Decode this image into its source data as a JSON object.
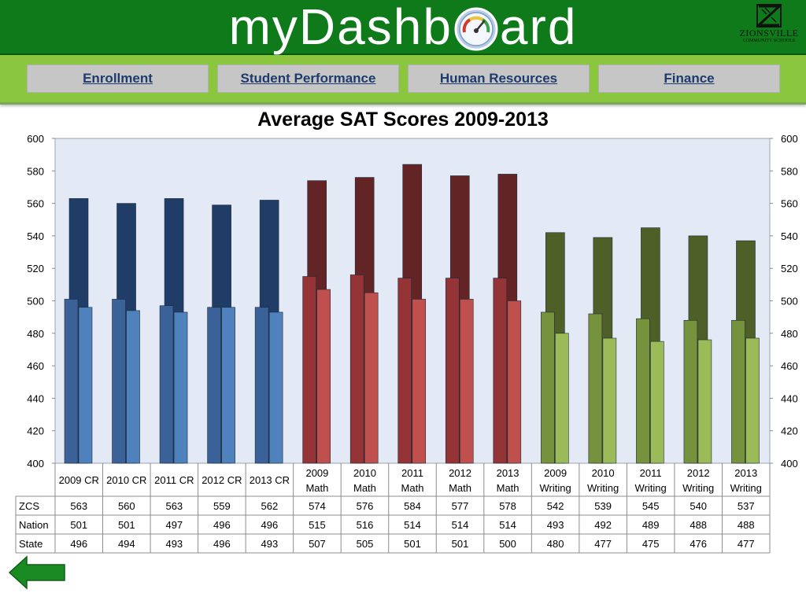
{
  "app": {
    "title_left": "myDashb",
    "title_right": "ard",
    "logo_name": "ZIONSVILLE",
    "logo_sub": "COMMUNITY SCHOOLS"
  },
  "nav": {
    "items": [
      {
        "label": "Enrollment"
      },
      {
        "label": "Student Performance"
      },
      {
        "label": "Human Resources"
      },
      {
        "label": "Finance"
      }
    ]
  },
  "colors": {
    "header_green": "#0e7a1a",
    "nav_green": "#8bc63f",
    "plot_bg": "#e3eaf5",
    "cr": {
      "zcs": "#1f3d66",
      "nation": "#3a6198",
      "state": "#4f81bd"
    },
    "math": {
      "zcs": "#632426",
      "nation": "#943436",
      "state": "#c0504d"
    },
    "writing": {
      "zcs": "#4e5f28",
      "nation": "#77923c",
      "state": "#9bbb59"
    }
  },
  "chart_data": {
    "type": "bar",
    "title": "Average SAT Scores 2009-2013",
    "ylim": [
      400,
      600
    ],
    "y_ticks": [
      400,
      420,
      440,
      460,
      480,
      500,
      520,
      540,
      560,
      580,
      600
    ],
    "y_axis_both_sides": true,
    "grid": false,
    "categories": [
      [
        "2009 CR"
      ],
      [
        "2010 CR"
      ],
      [
        "2011 CR"
      ],
      [
        "2012 CR"
      ],
      [
        "2013 CR"
      ],
      [
        "2009",
        "Math"
      ],
      [
        "2010",
        "Math"
      ],
      [
        "2011",
        "Math"
      ],
      [
        "2012",
        "Math"
      ],
      [
        "2013",
        "Math"
      ],
      [
        "2009",
        "Writing"
      ],
      [
        "2010",
        "Writing"
      ],
      [
        "2011",
        "Writing"
      ],
      [
        "2012",
        "Writing"
      ],
      [
        "2013",
        "Writing"
      ]
    ],
    "category_groups": [
      "cr",
      "cr",
      "cr",
      "cr",
      "cr",
      "math",
      "math",
      "math",
      "math",
      "math",
      "writing",
      "writing",
      "writing",
      "writing",
      "writing"
    ],
    "series": [
      {
        "name": "ZCS",
        "key": "zcs",
        "values": [
          563,
          560,
          563,
          559,
          562,
          574,
          576,
          584,
          577,
          578,
          542,
          539,
          545,
          540,
          537
        ]
      },
      {
        "name": "Nation",
        "key": "nation",
        "values": [
          501,
          501,
          497,
          496,
          496,
          515,
          516,
          514,
          514,
          514,
          493,
          492,
          489,
          488,
          488
        ]
      },
      {
        "name": "State",
        "key": "state",
        "values": [
          496,
          494,
          493,
          496,
          493,
          507,
          505,
          501,
          501,
          500,
          480,
          477,
          475,
          476,
          477
        ]
      }
    ],
    "data_table": true
  }
}
